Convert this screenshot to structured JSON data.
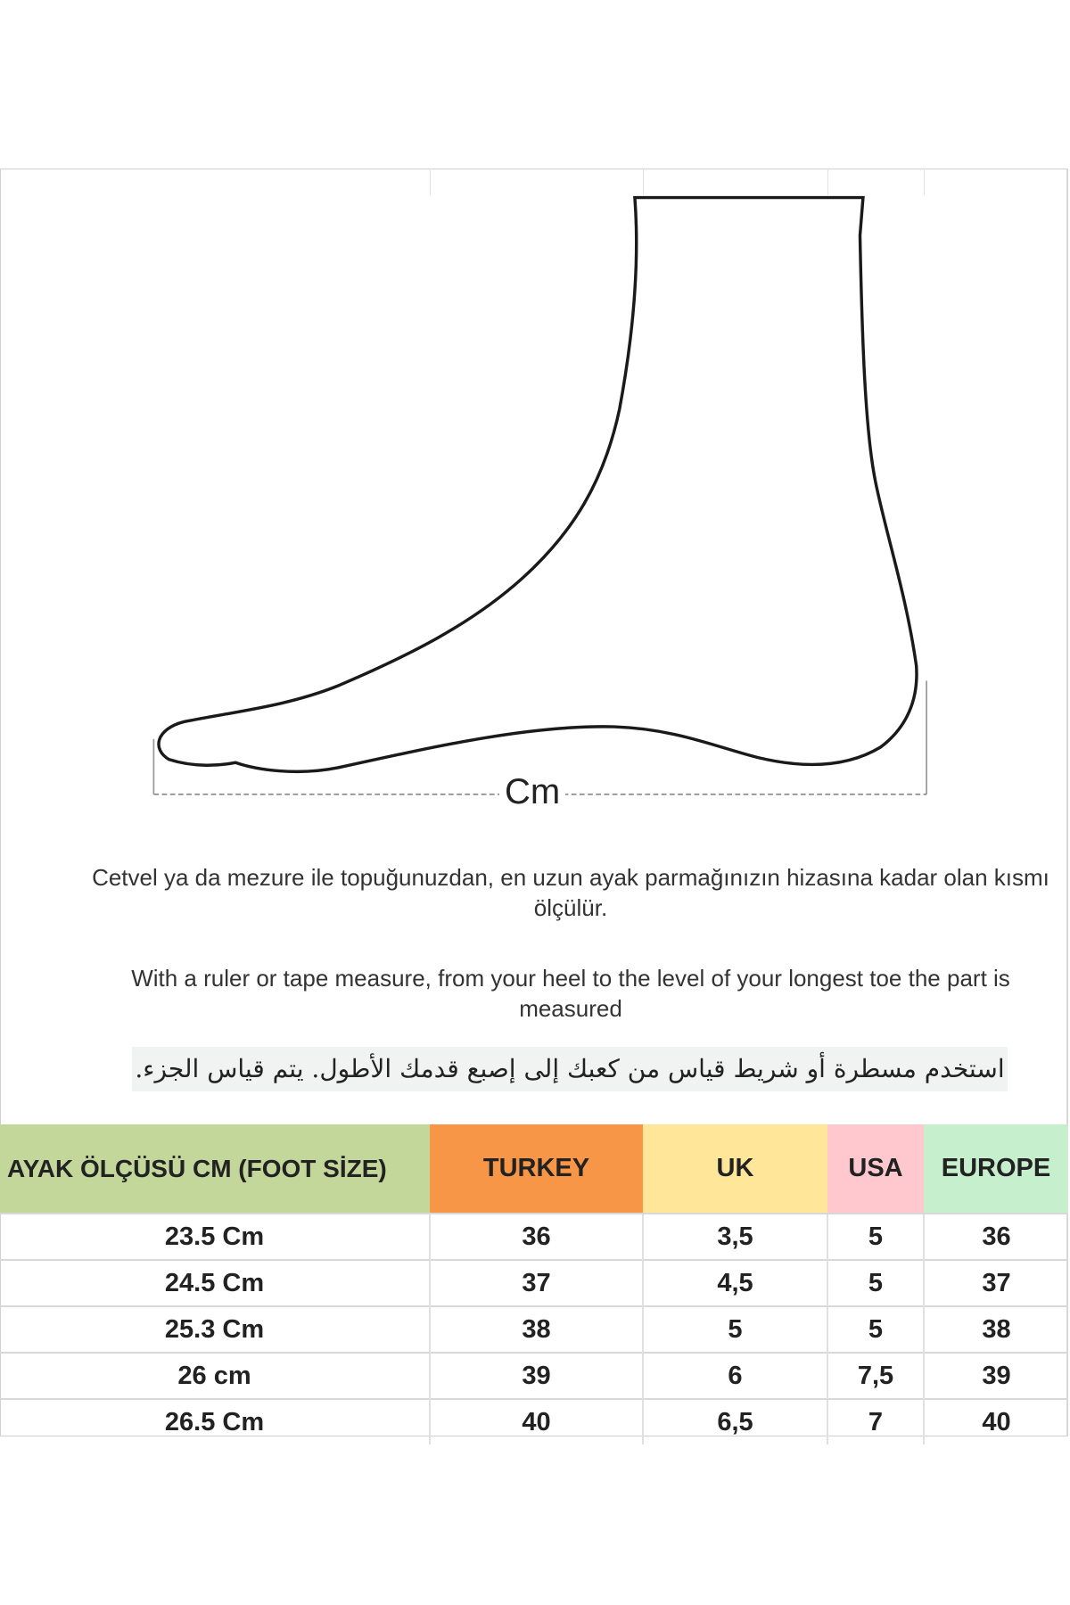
{
  "diagram": {
    "measure_label": "Cm"
  },
  "instructions": {
    "turkish": "Cetvel ya da mezure ile topuğunuzdan, en uzun ayak parmağınızın hizasına kadar olan kısmı ölçülür.",
    "english": "With a ruler or tape measure, from your heel to the level of your longest toe the part is measured",
    "arabic": "استخدم مسطرة أو شريط قياس من كعبك إلى إصبع قدمك الأطول.  يتم قياس الجزء."
  },
  "table": {
    "headers": [
      {
        "label": "AYAK ÖLÇÜSÜ CM (FOOT SİZE)",
        "color": "#c4d79b"
      },
      {
        "label": "TURKEY",
        "color": "#f79646"
      },
      {
        "label": "UK",
        "color": "#ffe699"
      },
      {
        "label": "USA",
        "color": "#ffc7ce"
      },
      {
        "label": "EUROPE",
        "color": "#c6efce"
      }
    ],
    "rows": [
      [
        "23.5 Cm",
        "36",
        "3,5",
        "5",
        "36"
      ],
      [
        "24.5 Cm",
        "37",
        "4,5",
        "5",
        "37"
      ],
      [
        "25.3 Cm",
        "38",
        "5",
        "5",
        "38"
      ],
      [
        "26 cm",
        "39",
        "6",
        "7,5",
        "39"
      ],
      [
        "26.5 Cm",
        "40",
        "6,5",
        "7",
        "40"
      ]
    ]
  }
}
